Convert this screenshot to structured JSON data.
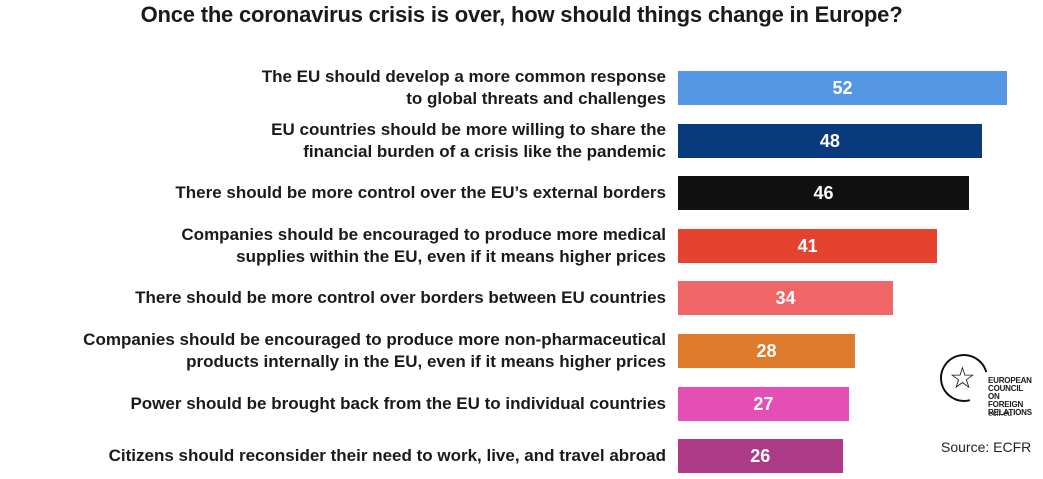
{
  "chart_data": {
    "type": "bar",
    "orientation": "horizontal",
    "title": "Once the coronavirus crisis is over, how should things change in Europe?",
    "categories": [
      "The EU should develop a more common response\nto global threats and challenges",
      "EU countries should be more willing to share the\nfinancial burden of a crisis like the pandemic",
      "There should be more control over the EU’s external borders",
      "Companies should be encouraged to produce more medical\nsupplies within the EU, even if it means higher prices",
      "There should be more control over borders between EU countries",
      "Companies should be encouraged to produce more non-pharmaceutical\nproducts internally in the EU, even if it means higher prices",
      "Power should be brought back from the EU to individual countries",
      "Citizens should reconsider their need to work, live, and travel abroad"
    ],
    "values": [
      52,
      48,
      46,
      41,
      34,
      28,
      27,
      26
    ],
    "colors": [
      "#5597e2",
      "#0a3a7e",
      "#111111",
      "#e5422f",
      "#f06666",
      "#e07a2b",
      "#e44fb5",
      "#ad3a86"
    ],
    "xlim": [
      0,
      52
    ],
    "grid": false,
    "legend": "none"
  },
  "logo": {
    "text": "EUROPEAN\nCOUNCIL\nON FOREIGN\nRELATIONS",
    "site": "ecfr.eu"
  },
  "source": "Source: ECFR"
}
